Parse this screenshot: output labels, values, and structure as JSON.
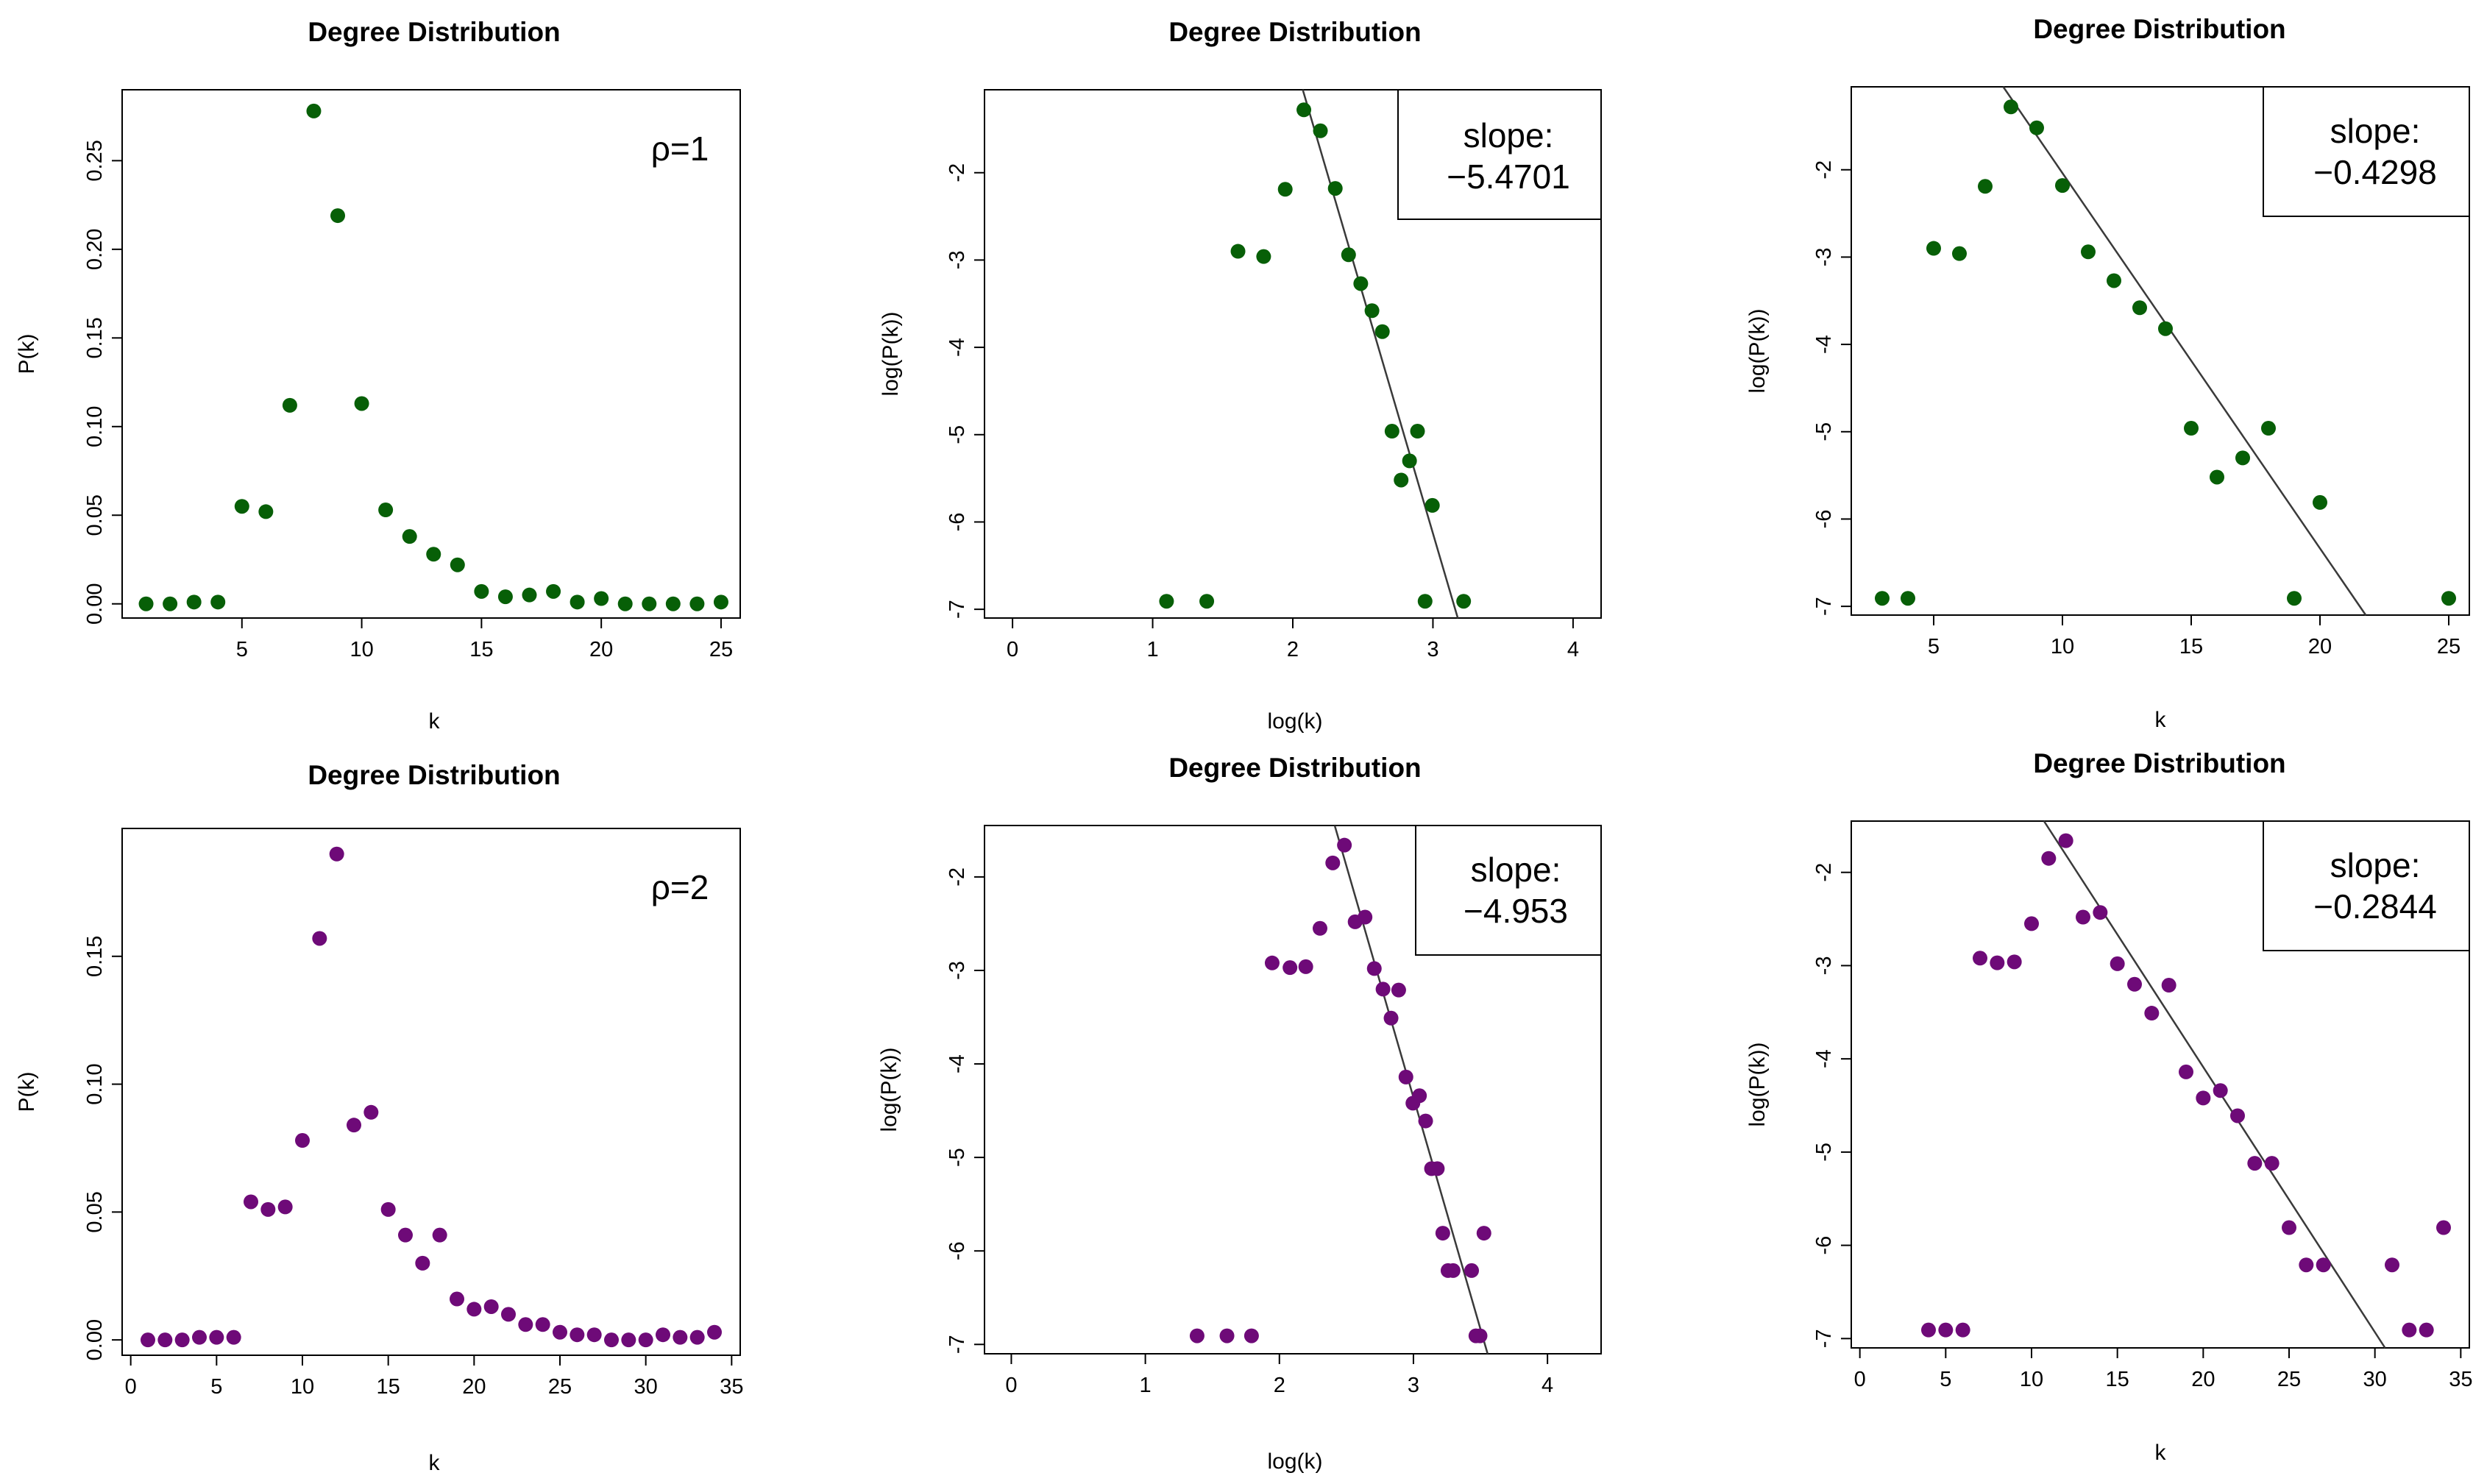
{
  "figure": {
    "colors": {
      "rho1": "#075f07",
      "rho2": "#6e0a78",
      "axis": "#000000",
      "fit_line": "#3a3a3a"
    }
  },
  "chart_data": [
    {
      "panel": "top-left",
      "type": "scatter",
      "title": "Degree Distribution",
      "xlabel": "k",
      "ylabel": "P(k)",
      "annotation": "ρ=1",
      "color_key": "rho1",
      "xlim": [
        0.0,
        25.8
      ],
      "ylim": [
        -0.008,
        0.29
      ],
      "xticks": [
        5,
        10,
        15,
        20,
        25
      ],
      "xtick_labels": [
        "5",
        "10",
        "15",
        "20",
        "25"
      ],
      "yticks": [
        0.0,
        0.05,
        0.1,
        0.15,
        0.2,
        0.25
      ],
      "ytick_labels": [
        "0.00",
        "0.05",
        "0.10",
        "0.15",
        "0.20",
        "0.25"
      ],
      "x": [
        1,
        2,
        3,
        4,
        5,
        6,
        7,
        8,
        9,
        10,
        11,
        12,
        13,
        14,
        15,
        16,
        17,
        18,
        19,
        20,
        21,
        22,
        23,
        24,
        25
      ],
      "y": [
        0.0,
        0.0,
        0.001,
        0.001,
        0.055,
        0.052,
        0.112,
        0.278,
        0.219,
        0.113,
        0.053,
        0.038,
        0.028,
        0.022,
        0.007,
        0.004,
        0.005,
        0.007,
        0.001,
        0.003,
        0.0,
        0.0,
        0.0,
        0.0,
        0.001
      ]
    },
    {
      "panel": "top-middle",
      "type": "scatter",
      "title": "Degree Distribution",
      "xlabel": "log(k)",
      "ylabel": "log(P(k))",
      "color_key": "rho1",
      "annotation_lines": [
        "slope:",
        "−5.4701"
      ],
      "xlim": [
        -0.2,
        4.2
      ],
      "ylim": [
        -7.1,
        -1.05
      ],
      "xticks": [
        0,
        1,
        2,
        3,
        4
      ],
      "xtick_labels": [
        "0",
        "1",
        "2",
        "3",
        "4"
      ],
      "yticks": [
        -7,
        -6,
        -5,
        -4,
        -3,
        -2
      ],
      "ytick_labels": [
        "-7",
        "-6",
        "-5",
        "-4",
        "-3",
        "-2"
      ],
      "x": [
        1.099,
        1.386,
        1.609,
        1.792,
        1.946,
        2.079,
        2.197,
        2.303,
        2.398,
        2.485,
        2.565,
        2.639,
        2.708,
        2.773,
        2.833,
        2.89,
        2.944,
        2.996,
        3.219
      ],
      "y": [
        -6.908,
        -6.908,
        -2.9,
        -2.96,
        -2.19,
        -1.28,
        -1.52,
        -2.18,
        -2.94,
        -3.27,
        -3.58,
        -3.82,
        -4.96,
        -5.52,
        -5.3,
        -4.96,
        -6.908,
        -5.81,
        -6.908
      ],
      "fit_line": {
        "slope": -5.4701,
        "intercept": 10.28
      }
    },
    {
      "panel": "top-right",
      "type": "scatter",
      "title": "Degree Distribution",
      "xlabel": "k",
      "ylabel": "log(P(k))",
      "color_key": "rho1",
      "annotation_lines": [
        "slope:",
        "−0.4298"
      ],
      "xlim": [
        1.8,
        25.8
      ],
      "ylim": [
        -7.1,
        -1.05
      ],
      "xticks": [
        5,
        10,
        15,
        20,
        25
      ],
      "xtick_labels": [
        "5",
        "10",
        "15",
        "20",
        "25"
      ],
      "yticks": [
        -7,
        -6,
        -5,
        -4,
        -3,
        -2
      ],
      "ytick_labels": [
        "-7",
        "-6",
        "-5",
        "-4",
        "-3",
        "-2"
      ],
      "x": [
        3,
        4,
        5,
        6,
        7,
        8,
        9,
        10,
        11,
        12,
        13,
        14,
        15,
        16,
        17,
        18,
        19,
        20,
        25
      ],
      "y": [
        -6.908,
        -6.908,
        -2.9,
        -2.96,
        -2.19,
        -1.28,
        -1.52,
        -2.18,
        -2.94,
        -3.27,
        -3.58,
        -3.82,
        -4.96,
        -5.52,
        -5.3,
        -4.96,
        -6.908,
        -5.81,
        -6.908
      ],
      "fit_line": {
        "slope": -0.4298,
        "intercept": 2.26
      }
    },
    {
      "panel": "bottom-left",
      "type": "scatter",
      "title": "Degree Distribution",
      "xlabel": "k",
      "ylabel": "P(k)",
      "annotation": "ρ=2",
      "color_key": "rho2",
      "xlim": [
        -0.5,
        35.5
      ],
      "ylim": [
        -0.006,
        0.2
      ],
      "xticks": [
        0,
        5,
        10,
        15,
        20,
        25,
        30,
        35
      ],
      "xtick_labels": [
        "0",
        "5",
        "10",
        "15",
        "20",
        "25",
        "30",
        "35"
      ],
      "yticks": [
        0.0,
        0.05,
        0.1,
        0.15
      ],
      "ytick_labels": [
        "0.00",
        "0.05",
        "0.10",
        "0.15"
      ],
      "x": [
        1,
        2,
        3,
        4,
        5,
        6,
        7,
        8,
        9,
        10,
        11,
        12,
        13,
        14,
        15,
        16,
        17,
        18,
        19,
        20,
        21,
        22,
        23,
        24,
        25,
        26,
        27,
        28,
        29,
        30,
        31,
        32,
        33,
        34
      ],
      "y": [
        0.0,
        0.0,
        0.0,
        0.001,
        0.001,
        0.001,
        0.054,
        0.051,
        0.052,
        0.078,
        0.157,
        0.19,
        0.084,
        0.089,
        0.051,
        0.041,
        0.03,
        0.041,
        0.016,
        0.012,
        0.013,
        0.01,
        0.006,
        0.006,
        0.003,
        0.002,
        0.002,
        0.0,
        0.0,
        0.0,
        0.002,
        0.001,
        0.001,
        0.003
      ]
    },
    {
      "panel": "bottom-middle",
      "type": "scatter",
      "title": "Degree Distribution",
      "xlabel": "log(k)",
      "ylabel": "log(P(k))",
      "color_key": "rho2",
      "annotation_lines": [
        "slope:",
        "−4.953"
      ],
      "xlim": [
        -0.2,
        4.4
      ],
      "ylim": [
        -7.1,
        -1.45
      ],
      "xticks": [
        0,
        1,
        2,
        3,
        4
      ],
      "xtick_labels": [
        "0",
        "1",
        "2",
        "3",
        "4"
      ],
      "yticks": [
        -7,
        -6,
        -5,
        -4,
        -3,
        -2
      ],
      "ytick_labels": [
        "-7",
        "-6",
        "-5",
        "-4",
        "-3",
        "-2"
      ],
      "x": [
        1.386,
        1.609,
        1.792,
        1.946,
        2.079,
        2.197,
        2.303,
        2.398,
        2.485,
        2.565,
        2.639,
        2.708,
        2.773,
        2.833,
        2.89,
        2.944,
        2.996,
        3.045,
        3.091,
        3.135,
        3.178,
        3.219,
        3.258,
        3.296,
        3.434,
        3.466,
        3.497,
        3.526
      ],
      "y": [
        -6.908,
        -6.908,
        -6.908,
        -2.92,
        -2.97,
        -2.96,
        -2.55,
        -1.85,
        -1.66,
        -2.48,
        -2.43,
        -2.98,
        -3.2,
        -3.51,
        -3.21,
        -4.14,
        -4.42,
        -4.34,
        -4.61,
        -5.12,
        -5.12,
        -5.81,
        -6.21,
        -6.21,
        -6.21,
        -6.908,
        -6.908,
        -5.81
      ],
      "fit_line": {
        "slope": -4.953,
        "intercept": 10.5
      }
    },
    {
      "panel": "bottom-right",
      "type": "scatter",
      "title": "Degree Distribution",
      "xlabel": "k",
      "ylabel": "log(P(k))",
      "color_key": "rho2",
      "annotation_lines": [
        "slope:",
        "−0.2844"
      ],
      "xlim": [
        -0.5,
        35.5
      ],
      "ylim": [
        -7.1,
        -1.45
      ],
      "xticks": [
        0,
        5,
        10,
        15,
        20,
        25,
        30,
        35
      ],
      "xtick_labels": [
        "0",
        "5",
        "10",
        "15",
        "20",
        "25",
        "30",
        "35"
      ],
      "yticks": [
        -7,
        -6,
        -5,
        -4,
        -3,
        -2
      ],
      "ytick_labels": [
        "-7",
        "-6",
        "-5",
        "-4",
        "-3",
        "-2"
      ],
      "x": [
        4,
        5,
        6,
        7,
        8,
        9,
        10,
        11,
        12,
        13,
        14,
        15,
        16,
        17,
        18,
        19,
        20,
        21,
        22,
        23,
        24,
        25,
        26,
        27,
        31,
        32,
        33,
        34
      ],
      "y": [
        -6.908,
        -6.908,
        -6.908,
        -2.92,
        -2.97,
        -2.96,
        -2.55,
        -1.85,
        -1.66,
        -2.48,
        -2.43,
        -2.98,
        -3.2,
        -3.51,
        -3.21,
        -4.14,
        -4.42,
        -4.34,
        -4.61,
        -5.12,
        -5.12,
        -5.81,
        -6.21,
        -6.21,
        -6.21,
        -6.908,
        -6.908,
        -5.81
      ],
      "fit_line": {
        "slope": -0.2844,
        "intercept": 1.6
      }
    }
  ]
}
